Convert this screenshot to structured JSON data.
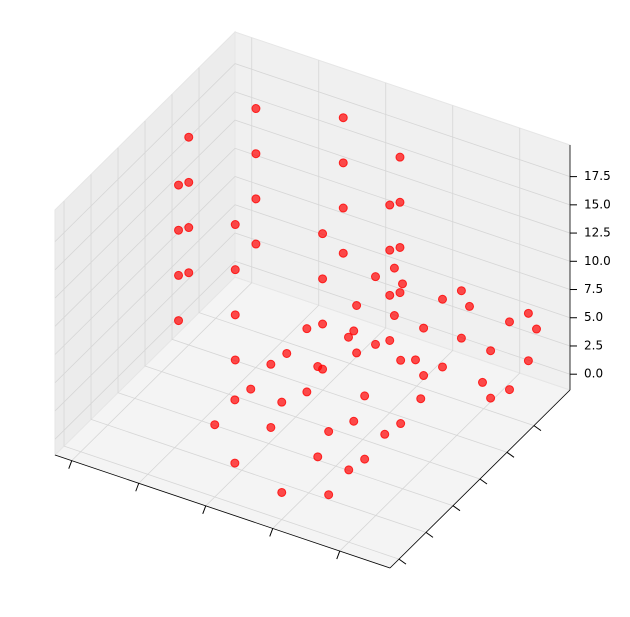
{
  "chart_data": {
    "type": "scatter3d",
    "color": "#ff0000",
    "xlim": [
      0,
      20
    ],
    "ylim": [
      0,
      20
    ],
    "zlim": [
      -1.4,
      20.3
    ],
    "xticks": [
      1,
      5,
      9,
      13,
      17
    ],
    "yticks": [
      1,
      4,
      7,
      10,
      13,
      16
    ],
    "zticks": [
      {
        "value": 0,
        "label": "0.0"
      },
      2.5,
      {
        "value": 5,
        "label": "5.0"
      },
      7.5,
      {
        "value": 10,
        "label": "10.0"
      },
      12.5,
      {
        "value": 15,
        "label": "15.0"
      },
      17.5
    ],
    "grid": true,
    "x": [
      13,
      11.3,
      7,
      2.7,
      1,
      2.7,
      7,
      11.3,
      13,
      11.3,
      7,
      2.7,
      1,
      2.7,
      7,
      11.3,
      13,
      11.3,
      7,
      2.7,
      1,
      2.7,
      7,
      11.3,
      13,
      11.3,
      7,
      2.7,
      1,
      2.7,
      7,
      11.3,
      17,
      15.8,
      13,
      10.2,
      9,
      10.2,
      13,
      15.8,
      17,
      15.8,
      13,
      10.2,
      9,
      10.2,
      13,
      15.8,
      17,
      15.8,
      13,
      10.2,
      9,
      10.2,
      13,
      15.8,
      10,
      10,
      10,
      10,
      10,
      10,
      10,
      10,
      14,
      14,
      14,
      14,
      14,
      14,
      14,
      14,
      18,
      18,
      18,
      18,
      18,
      18,
      18,
      18
    ],
    "y": [
      13,
      17.3,
      19,
      17.3,
      13,
      8.7,
      7,
      8.7,
      13,
      17.3,
      19,
      17.3,
      13,
      8.7,
      7,
      8.7,
      13,
      17.3,
      19,
      17.3,
      13,
      8.7,
      7,
      8.7,
      13,
      17.3,
      19,
      17.3,
      13,
      8.7,
      7,
      8.7,
      1,
      1,
      1,
      1,
      1,
      1,
      1,
      1,
      5,
      5,
      5,
      5,
      5,
      5,
      5,
      5,
      9,
      9,
      9,
      9,
      9,
      9,
      9,
      9,
      20,
      19.1,
      17,
      14.9,
      14,
      14.9,
      17,
      19.1,
      20,
      19.1,
      17,
      14.9,
      14,
      14.9,
      17,
      19.1,
      20,
      19.1,
      17,
      14.9,
      14,
      14.9,
      17,
      19.1
    ],
    "z": [
      17,
      17,
      17,
      17,
      17,
      17,
      17,
      17,
      13,
      13,
      13,
      13,
      13,
      13,
      13,
      13,
      9,
      9,
      9,
      9,
      9,
      9,
      9,
      9,
      5,
      5,
      5,
      5,
      5,
      5,
      5,
      5,
      5,
      7.8,
      9,
      7.8,
      5,
      2.2,
      1,
      2.2,
      5,
      7.8,
      9,
      7.8,
      5,
      2.2,
      1,
      2.2,
      5,
      7.8,
      9,
      7.8,
      5,
      2.2,
      1,
      2.2,
      3,
      5.1,
      6,
      5.1,
      3,
      0.9,
      0,
      0.9,
      3,
      5.1,
      6,
      5.1,
      3,
      0.9,
      0,
      0.9,
      3,
      5.1,
      6,
      5.1,
      3,
      0.9,
      0,
      0.9
    ]
  }
}
